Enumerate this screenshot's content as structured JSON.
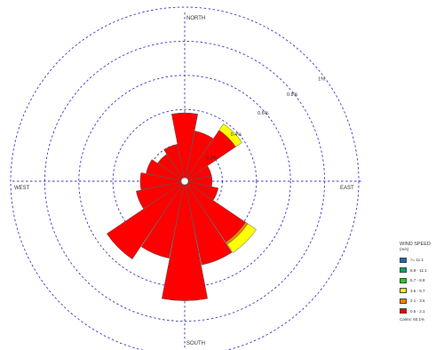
{
  "chart_data": {
    "type": "wind-rose",
    "directions": [
      "N",
      "NNE",
      "NE",
      "ENE",
      "E",
      "ESE",
      "SE",
      "SSE",
      "S",
      "SSW",
      "SW",
      "WSW",
      "W",
      "WNW",
      "NW",
      "NNW"
    ],
    "direction_labels": {
      "north": "NORTH",
      "south": "SOUTH",
      "east": "EAST",
      "west": "WEST"
    },
    "ring_labels": [
      {
        "value": 0.2,
        "label": "0.2%"
      },
      {
        "value": 0.4,
        "label": "0.4%"
      },
      {
        "value": 0.6,
        "label": "0.6%"
      },
      {
        "value": 0.8,
        "label": "0.8%"
      },
      {
        "value": 1.0,
        "label": "1%"
      }
    ],
    "series": [
      {
        "name": "0.5 - 2.1",
        "color": "#ff0000",
        "values": [
          0.38,
          0.28,
          0.34,
          0.14,
          0.14,
          0.18,
          0.41,
          0.48,
          0.68,
          0.44,
          0.53,
          0.27,
          0.24,
          0.21,
          0.17,
          0.2
        ]
      },
      {
        "name": "2.1 - 3.6",
        "color": "#ff8000",
        "values": [
          0,
          0,
          0,
          0,
          0,
          0,
          0.015,
          0,
          0,
          0,
          0,
          0,
          0,
          0,
          0,
          0
        ]
      },
      {
        "name": "3.6 - 5.7",
        "color": "#ffff00",
        "values": [
          0,
          0,
          0.045,
          0,
          0,
          0,
          0.06,
          0,
          0,
          0,
          0,
          0,
          0,
          0,
          0,
          0
        ]
      },
      {
        "name": "5.7 - 8.8",
        "color": "#22cc22",
        "values": [
          0,
          0,
          0,
          0,
          0,
          0,
          0,
          0,
          0,
          0,
          0,
          0,
          0,
          0,
          0,
          0
        ]
      },
      {
        "name": "8.8 - 11.1",
        "color": "#00aa55",
        "values": [
          0,
          0,
          0,
          0,
          0,
          0,
          0,
          0,
          0,
          0,
          0,
          0,
          0,
          0,
          0,
          0
        ]
      },
      {
        "name": ">= 11.1",
        "color": "#2266aa",
        "values": [
          0,
          0,
          0,
          0,
          0,
          0,
          0,
          0,
          0,
          0,
          0,
          0,
          0,
          0,
          0,
          0
        ]
      }
    ],
    "legend": {
      "title": "WIND SPEED",
      "units": "(m/s)",
      "placement": "bottom-right",
      "items": [
        {
          "label": ">= 11.1",
          "color": "#2266aa"
        },
        {
          "label": "8.8 - 11.1",
          "color": "#00aa55"
        },
        {
          "label": "5.7 - 8.8",
          "color": "#22cc22"
        },
        {
          "label": "3.6 - 5.7",
          "color": "#ffff00"
        },
        {
          "label": "2.1 - 3.6",
          "color": "#ff8000"
        },
        {
          "label": "0.5 - 2.1",
          "color": "#ff0000"
        }
      ],
      "calms": "Calms: 60.1%"
    }
  }
}
